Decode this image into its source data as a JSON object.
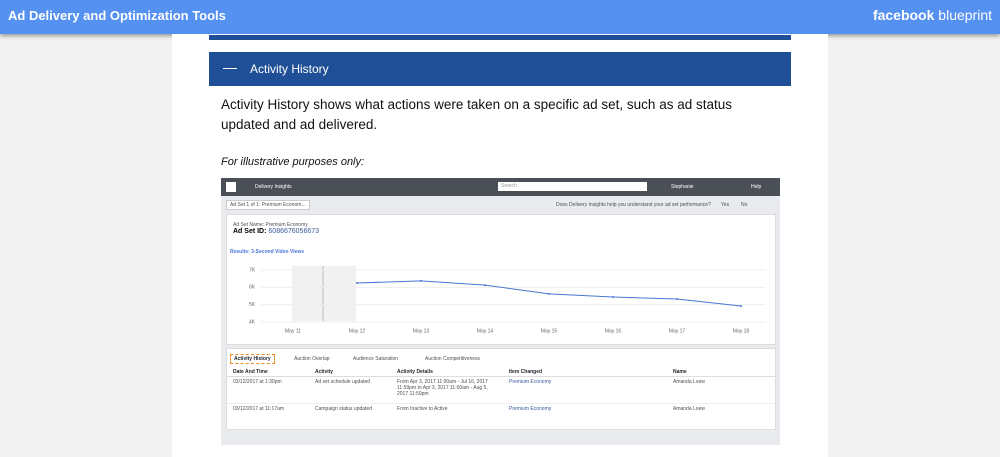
{
  "header": {
    "title": "Ad Delivery and Optimization Tools",
    "brand_bold": "facebook",
    "brand_light": "blueprint"
  },
  "section": {
    "title": "Activity History",
    "body": "Activity History shows what actions were taken on a specific ad set, such as ad status updated and ad delivered.",
    "note": "For illustrative purposes only:"
  },
  "screenshot": {
    "nav": {
      "tool": "Delivery Insights",
      "search": "Search",
      "user": "Stephanie",
      "help": "Help"
    },
    "toolbar": {
      "dropdown": "Ad Set 1 of 1: Premium Econom...",
      "question": "Does Delivery Insights help you understand your ad set performance?",
      "yes": "Yes",
      "no": "No"
    },
    "ad_set": {
      "name": "Ad Set Name: Premium Economy",
      "id_label": "Ad Set ID:",
      "id": "6086676056673",
      "results": "Results: 3-Second Video Views"
    },
    "chart": {
      "type": "line",
      "categories": [
        "May 11",
        "May 12",
        "May 13",
        "May 14",
        "May 15",
        "May 16",
        "May 17",
        "May 18"
      ],
      "values": [
        null,
        6.25,
        6.37,
        6.13,
        5.62,
        5.44,
        5.33,
        4.92
      ],
      "color": "#4a76d4",
      "ylim": [
        4,
        7
      ],
      "yticks": [
        {
          "value": 7,
          "label": "7K"
        },
        {
          "value": 6,
          "label": "6K"
        },
        {
          "value": 5,
          "label": "5K"
        },
        {
          "value": 4,
          "label": "4K"
        }
      ]
    },
    "tabs": [
      "Activity History",
      "Auction Overlap",
      "Audience Saturation",
      "Auction Competitiveness"
    ],
    "table": {
      "columns": [
        "Date And Time",
        "Activity",
        "Activity Details",
        "Item Changed",
        "Name"
      ],
      "rows": [
        [
          "03/12/2017 at 1:30pm",
          "Ad set schedule updated",
          "From Apr 3, 2017 11:00am - Jul 16, 2017 11:59pm to Apr 3, 2017 11:00am - Aug 5, 2017 11:59pm",
          "Premium Economy",
          "Amanda Loew"
        ],
        [
          "03/12/2017 at 11:17am",
          "Campaign status updated",
          "From Inactive to Active",
          "Premium Economy",
          "Amanda Loew"
        ]
      ]
    }
  }
}
